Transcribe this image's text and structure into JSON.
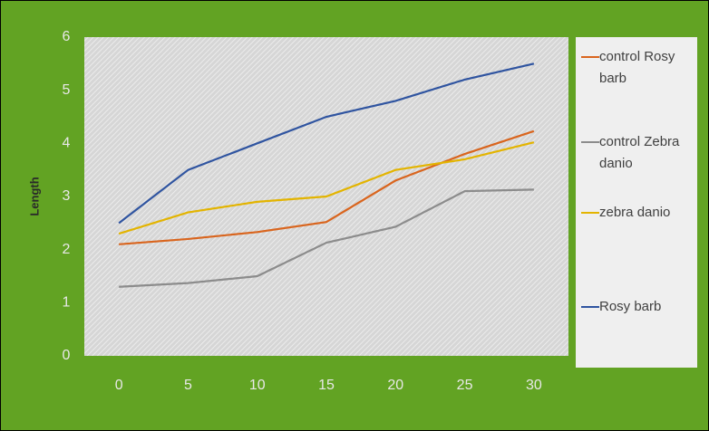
{
  "chart_data": {
    "type": "line",
    "y_label": "Length",
    "x": [
      0,
      5,
      10,
      15,
      20,
      25,
      30
    ],
    "xlim": [
      -2.5,
      32.5
    ],
    "xticks": [
      0,
      5,
      10,
      15,
      20,
      25,
      30
    ],
    "ylim": [
      0,
      6
    ],
    "yticks": [
      0,
      1,
      2,
      3,
      4,
      5,
      6
    ],
    "series": [
      {
        "name": "control Rosy barb",
        "color": "#d9651e",
        "values": [
          2.1,
          2.2,
          2.33,
          2.52,
          3.3,
          3.8,
          4.23
        ]
      },
      {
        "name": "control  Zebra danio",
        "color": "#8c8c8c",
        "values": [
          1.3,
          1.37,
          1.5,
          2.13,
          2.43,
          3.1,
          3.13
        ]
      },
      {
        "name": "zebra danio",
        "color": "#e3b400",
        "values": [
          2.3,
          2.7,
          2.9,
          3.0,
          3.5,
          3.7,
          4.02
        ]
      },
      {
        "name": "Rosy barb",
        "color": "#2f54a0",
        "values": [
          2.5,
          3.5,
          4.0,
          4.5,
          4.8,
          5.2,
          5.5
        ]
      }
    ]
  }
}
